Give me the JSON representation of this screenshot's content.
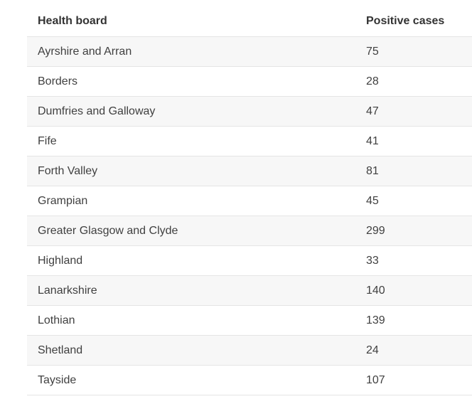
{
  "table": {
    "headers": [
      "Health board",
      "Positive cases"
    ],
    "rows": [
      [
        "Ayrshire and Arran",
        "75"
      ],
      [
        "Borders",
        "28"
      ],
      [
        "Dumfries and Galloway",
        "47"
      ],
      [
        "Fife",
        "41"
      ],
      [
        "Forth Valley",
        "81"
      ],
      [
        "Grampian",
        "45"
      ],
      [
        "Greater Glasgow and Clyde",
        "299"
      ],
      [
        "Highland",
        "33"
      ],
      [
        "Lanarkshire",
        "140"
      ],
      [
        "Lothian",
        "139"
      ],
      [
        "Shetland",
        "24"
      ],
      [
        "Tayside",
        "107"
      ]
    ]
  }
}
